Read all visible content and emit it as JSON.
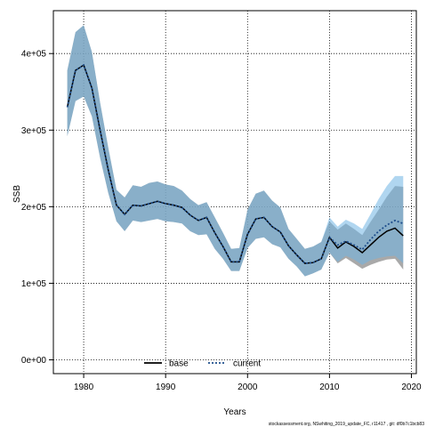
{
  "chart_data": {
    "type": "line",
    "xlabel": "Years",
    "ylabel": "SSB",
    "xlim": [
      1976.3,
      2020.6
    ],
    "ylim": [
      -18000,
      456000
    ],
    "xticks": [
      1980,
      1990,
      2000,
      2010,
      2020
    ],
    "yticks": [
      0,
      100000,
      200000,
      300000,
      400000
    ],
    "ytick_labels": [
      "0e+00",
      "1e+05",
      "2e+05",
      "3e+05",
      "4e+05"
    ],
    "grid": true,
    "legend_position": "bottom-center",
    "colors": {
      "base_line": "#000000",
      "current_line": "#1f4e8c",
      "base_band": "#8c8c8c",
      "current_band": "#6fb4e4",
      "overlap_band": "#a3c3d6"
    },
    "series": [
      {
        "name": "base",
        "style": "solid",
        "x": [
          1978,
          1979,
          1980,
          1981,
          1982,
          1983,
          1984,
          1985,
          1986,
          1987,
          1988,
          1989,
          1990,
          1991,
          1992,
          1993,
          1994,
          1995,
          1996,
          1997,
          1998,
          1999,
          2000,
          2001,
          2002,
          2003,
          2004,
          2005,
          2006,
          2007,
          2008,
          2009,
          2010,
          2011,
          2012,
          2013,
          2014,
          2015,
          2016,
          2017,
          2018,
          2019
        ],
        "y": [
          330000,
          378000,
          385000,
          355000,
          300000,
          248000,
          202000,
          190000,
          202000,
          201000,
          204000,
          207000,
          204000,
          202000,
          199000,
          189000,
          182000,
          186000,
          166000,
          148000,
          128000,
          128000,
          164000,
          184000,
          186000,
          174000,
          167000,
          149000,
          137000,
          126000,
          127000,
          132000,
          160000,
          146000,
          154000,
          148000,
          140000,
          150000,
          160000,
          168000,
          172000,
          162000
        ],
        "lower": [
          292000,
          338000,
          344000,
          318000,
          264000,
          218000,
          181000,
          168000,
          182000,
          180000,
          182000,
          184000,
          181000,
          180000,
          178000,
          168000,
          163000,
          164000,
          145000,
          132000,
          116000,
          116000,
          146000,
          158000,
          160000,
          151000,
          147000,
          132000,
          122000,
          109000,
          113000,
          118000,
          140000,
          126000,
          133000,
          126000,
          119000,
          124000,
          128000,
          131000,
          132000,
          118000
        ],
        "upper": [
          378000,
          428000,
          437000,
          402000,
          336000,
          277000,
          222000,
          212000,
          228000,
          226000,
          231000,
          233000,
          229000,
          227000,
          221000,
          210000,
          202000,
          206000,
          186000,
          166000,
          145000,
          146000,
          196000,
          217000,
          221000,
          208000,
          199000,
          171000,
          158000,
          145000,
          148000,
          154000,
          181000,
          170000,
          178000,
          171000,
          163000,
          180000,
          196000,
          213000,
          227000,
          226000
        ]
      },
      {
        "name": "current",
        "style": "dotted",
        "x": [
          1978,
          1979,
          1980,
          1981,
          1982,
          1983,
          1984,
          1985,
          1986,
          1987,
          1988,
          1989,
          1990,
          1991,
          1992,
          1993,
          1994,
          1995,
          1996,
          1997,
          1998,
          1999,
          2000,
          2001,
          2002,
          2003,
          2004,
          2005,
          2006,
          2007,
          2008,
          2009,
          2010,
          2011,
          2012,
          2013,
          2014,
          2015,
          2016,
          2017,
          2018,
          2019
        ],
        "y": [
          330000,
          378000,
          385000,
          355000,
          300000,
          248000,
          202000,
          190000,
          202000,
          201000,
          204000,
          207000,
          204000,
          202000,
          199000,
          189000,
          182000,
          186000,
          166000,
          148000,
          128000,
          128000,
          164000,
          184000,
          186000,
          174000,
          167000,
          149000,
          137000,
          126000,
          127000,
          132000,
          160000,
          150000,
          155000,
          150000,
          144000,
          157000,
          168000,
          176000,
          182000,
          178000
        ],
        "lower": [
          292000,
          338000,
          344000,
          318000,
          264000,
          218000,
          181000,
          168000,
          182000,
          180000,
          182000,
          184000,
          181000,
          180000,
          178000,
          168000,
          163000,
          164000,
          145000,
          132000,
          116000,
          116000,
          146000,
          158000,
          160000,
          151000,
          147000,
          132000,
          122000,
          109000,
          113000,
          118000,
          140000,
          128000,
          136000,
          131000,
          124000,
          130000,
          133000,
          135000,
          136000,
          126000
        ],
        "upper": [
          378000,
          428000,
          437000,
          402000,
          336000,
          277000,
          222000,
          212000,
          228000,
          226000,
          231000,
          233000,
          229000,
          227000,
          221000,
          210000,
          202000,
          206000,
          186000,
          166000,
          145000,
          146000,
          196000,
          217000,
          221000,
          208000,
          199000,
          171000,
          158000,
          145000,
          148000,
          154000,
          186000,
          174000,
          183000,
          178000,
          171000,
          190000,
          210000,
          227000,
          240000,
          240000
        ]
      }
    ]
  },
  "footer": "stockassessment.org, NSwhiting_2019_update_FC, r11417 , git: df0b7c1bcb83"
}
